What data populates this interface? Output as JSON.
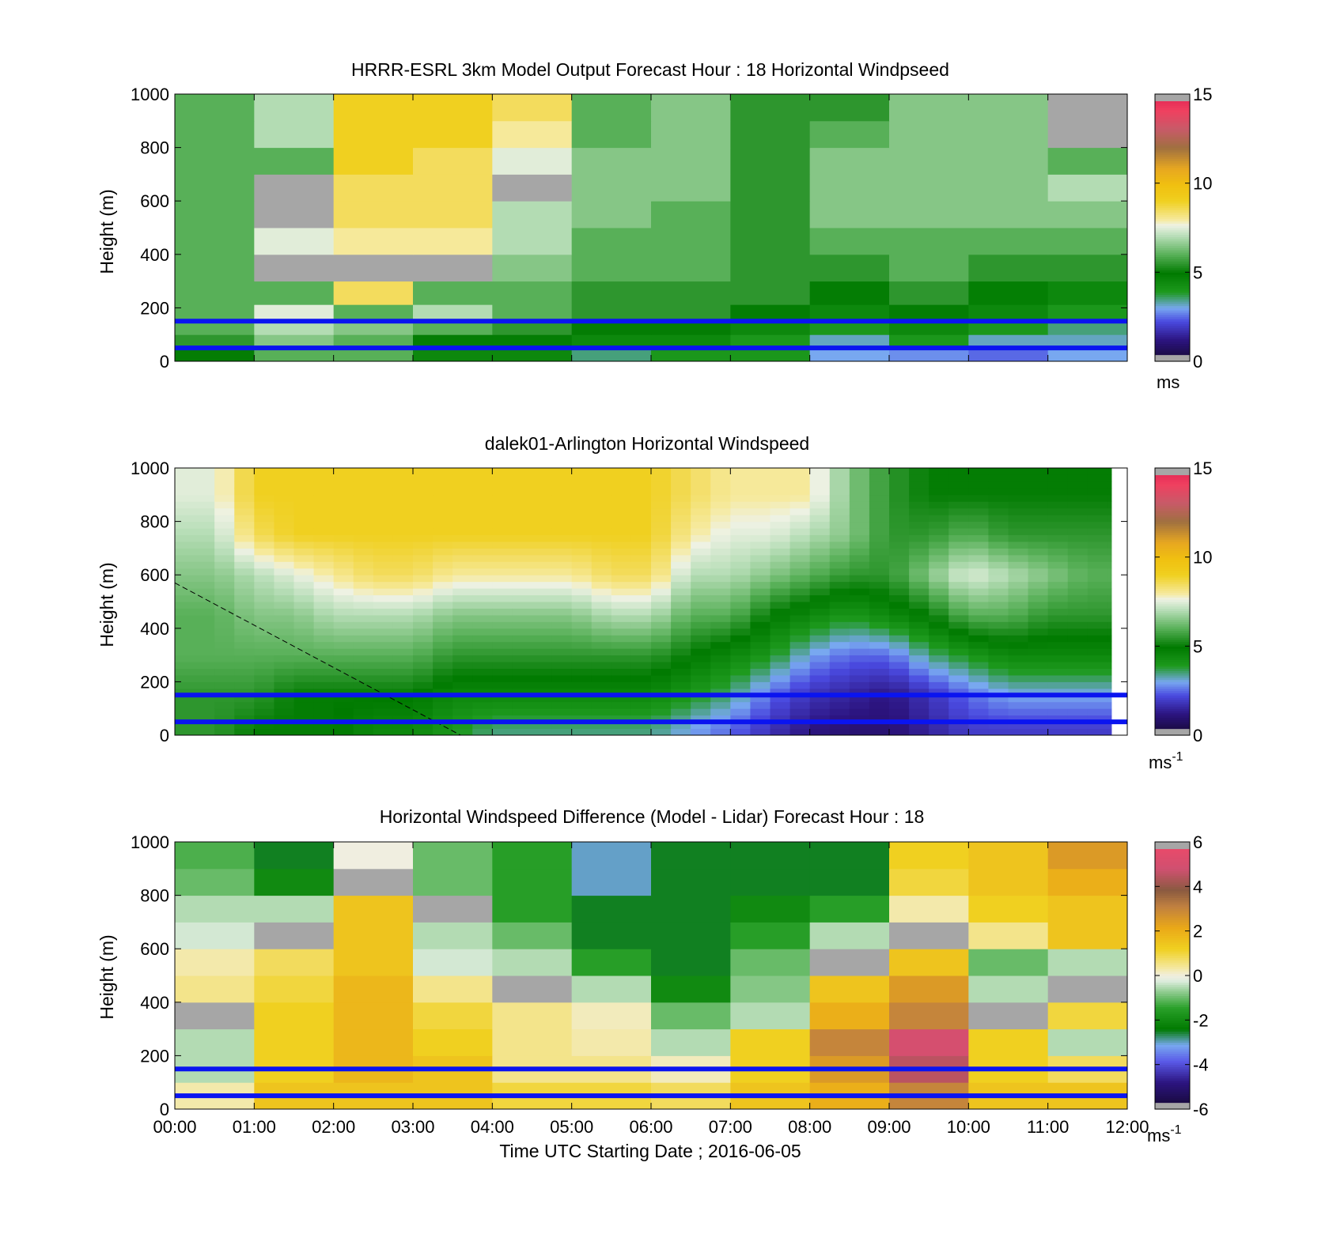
{
  "figure": {
    "xlabel": "Time UTC  Starting Date ; 2016-06-05"
  },
  "chart_data": [
    {
      "type": "heatmap",
      "title": "HRRR-ESRL 3km Model Output   Forecast Hour : 18 Horizontal Windpseed",
      "ylabel": "Height (m)",
      "xlim": [
        0,
        12
      ],
      "ylim": [
        0,
        1000
      ],
      "yticks": [
        "0",
        "200",
        "400",
        "600",
        "800",
        "1000"
      ],
      "x_tick_labels": [],
      "cbar_ticks": [
        "0",
        "5",
        "10",
        "15"
      ],
      "cbar_lim": [
        0,
        15
      ],
      "unit_label": "ms",
      "unit_sup": "",
      "colormap": "windspeed",
      "reference_lines_m": [
        150,
        50
      ],
      "x": [
        0.5,
        1.5,
        2.5,
        3.5,
        4.5,
        5.5,
        6.5,
        7.5,
        8.5,
        9.5,
        10.5,
        11.5
      ],
      "y": [
        25,
        75,
        125,
        175,
        250,
        350,
        450,
        550,
        650,
        750,
        850,
        950
      ],
      "z": [
        [
          5.0,
          6.0,
          6.0,
          4.5,
          4.5,
          3.5,
          4.0,
          4.0,
          3.0,
          2.8,
          2.5,
          3.0
        ],
        [
          5.5,
          6.5,
          6.0,
          5.0,
          5.0,
          4.5,
          4.5,
          4.0,
          3.2,
          4.0,
          3.2,
          3.2
        ],
        [
          6.0,
          7.0,
          6.5,
          6.0,
          5.5,
          5.0,
          5.0,
          4.5,
          4.0,
          4.5,
          4.0,
          3.5
        ],
        [
          6.0,
          7.5,
          6.0,
          7.0,
          6.0,
          5.5,
          5.5,
          5.0,
          4.5,
          5.0,
          4.5,
          4.0
        ],
        [
          6.0,
          6.0,
          8.5,
          6.0,
          6.0,
          5.5,
          5.5,
          5.5,
          5.0,
          5.5,
          4.8,
          4.5
        ],
        [
          6.0,
          7.5,
          7.5,
          7.5,
          6.5,
          6.0,
          6.0,
          5.5,
          5.5,
          6.0,
          5.5,
          5.5
        ],
        [
          6.0,
          7.5,
          8.0,
          8.0,
          7.0,
          6.0,
          6.0,
          5.5,
          6.0,
          6.0,
          6.0,
          6.0
        ],
        [
          6.0,
          7.5,
          8.5,
          8.5,
          7.0,
          6.5,
          6.0,
          5.5,
          6.5,
          6.5,
          6.5,
          6.5
        ],
        [
          6.0,
          6.0,
          8.5,
          8.5,
          6.0,
          6.5,
          6.5,
          5.5,
          6.5,
          6.5,
          6.5,
          7.0
        ],
        [
          6.0,
          6.0,
          9.0,
          8.5,
          7.5,
          6.5,
          6.5,
          5.5,
          6.5,
          6.5,
          6.5,
          6.0
        ],
        [
          6.0,
          7.0,
          9.0,
          9.0,
          8.0,
          6.0,
          6.5,
          5.5,
          6.0,
          6.5,
          6.5,
          6.0
        ],
        [
          6.0,
          7.0,
          9.0,
          9.0,
          8.5,
          6.0,
          6.5,
          5.5,
          5.5,
          6.5,
          6.5,
          6.0
        ]
      ],
      "missing_cells": [
        [
          1,
          7
        ],
        [
          1,
          8
        ],
        [
          1,
          5
        ],
        [
          2,
          5
        ],
        [
          3,
          5
        ],
        [
          4,
          8
        ],
        [
          11,
          10
        ],
        [
          11,
          11
        ]
      ]
    },
    {
      "type": "heatmap",
      "title": "dalek01-Arlington  Horizontal Windspeed",
      "ylabel": "Height (m)",
      "xlim": [
        0,
        12
      ],
      "ylim": [
        0,
        1000
      ],
      "yticks": [
        "0",
        "200",
        "400",
        "600",
        "800",
        "1000"
      ],
      "x_tick_labels": [],
      "cbar_ticks": [
        "0",
        "5",
        "10",
        "15"
      ],
      "cbar_lim": [
        0,
        15
      ],
      "unit_label": "ms",
      "unit_sup": "-1",
      "colormap": "windspeed",
      "reference_lines_m": [
        150,
        50
      ],
      "data_end_hour": 11.8,
      "guide_line": [
        [
          0,
          570
        ],
        [
          3.6,
          0
        ]
      ],
      "profile_hours": [
        0.5,
        1.0,
        1.5,
        2.0,
        2.5,
        3.0,
        3.5,
        4.0,
        4.5,
        5.0,
        5.5,
        6.0,
        6.5,
        7.0,
        7.5,
        8.0,
        8.5,
        9.0,
        9.5,
        10.0,
        10.5,
        11.0,
        11.5
      ],
      "profile_heights_m": [
        25,
        150,
        300,
        450,
        600,
        750,
        900
      ],
      "profile_speeds": [
        [
          5.5,
          5.5,
          6.0,
          6.0,
          6.5,
          7.0,
          7.5
        ],
        [
          5.0,
          5.5,
          6.0,
          6.5,
          7.0,
          8.5,
          9.0
        ],
        [
          5.0,
          5.0,
          6.0,
          6.5,
          7.5,
          9.0,
          9.0
        ],
        [
          5.0,
          5.0,
          6.0,
          7.0,
          8.0,
          9.0,
          9.0
        ],
        [
          4.5,
          5.0,
          6.0,
          7.0,
          8.5,
          9.0,
          9.0
        ],
        [
          4.5,
          5.0,
          6.0,
          7.0,
          8.5,
          9.0,
          9.0
        ],
        [
          4.0,
          4.5,
          5.5,
          6.5,
          8.0,
          9.0,
          9.0
        ],
        [
          3.5,
          4.5,
          5.5,
          6.5,
          8.0,
          9.0,
          9.0
        ],
        [
          3.5,
          4.5,
          5.5,
          6.5,
          8.0,
          9.0,
          9.0
        ],
        [
          3.5,
          4.5,
          5.5,
          6.5,
          8.0,
          9.0,
          9.0
        ],
        [
          3.5,
          4.5,
          5.5,
          7.0,
          8.5,
          9.0,
          9.0
        ],
        [
          3.5,
          4.5,
          5.5,
          7.0,
          8.5,
          9.0,
          9.0
        ],
        [
          3.0,
          4.0,
          5.0,
          6.0,
          7.0,
          8.0,
          8.5
        ],
        [
          2.5,
          3.5,
          4.5,
          6.0,
          7.0,
          7.5,
          8.0
        ],
        [
          1.8,
          2.5,
          4.0,
          5.0,
          6.5,
          7.5,
          8.0
        ],
        [
          1.2,
          1.8,
          3.0,
          4.5,
          6.0,
          7.0,
          8.0
        ],
        [
          1.0,
          1.5,
          2.5,
          4.0,
          5.5,
          6.5,
          6.5
        ],
        [
          1.0,
          1.2,
          2.5,
          4.5,
          5.5,
          5.5,
          5.5
        ],
        [
          1.5,
          1.8,
          3.5,
          5.0,
          6.5,
          5.5,
          5.0
        ],
        [
          2.0,
          2.5,
          4.0,
          6.0,
          7.5,
          6.0,
          5.0
        ],
        [
          2.0,
          3.0,
          4.5,
          6.0,
          7.0,
          5.5,
          5.0
        ],
        [
          2.0,
          3.0,
          4.5,
          5.5,
          6.5,
          5.5,
          5.0
        ],
        [
          2.0,
          3.0,
          4.5,
          5.5,
          6.0,
          5.5,
          5.0
        ]
      ]
    },
    {
      "type": "heatmap",
      "title": "Horizontal Windspeed Difference (Model - Lidar) Forecast Hour : 18",
      "ylabel": "Height (m)",
      "xlim": [
        0,
        12
      ],
      "ylim": [
        0,
        1000
      ],
      "yticks": [
        "0",
        "200",
        "400",
        "600",
        "800",
        "1000"
      ],
      "x_tick_labels": [
        "00:00",
        "01:00",
        "02:00",
        "03:00",
        "04:00",
        "05:00",
        "06:00",
        "07:00",
        "08:00",
        "09:00",
        "10:00",
        "11:00",
        "12:00"
      ],
      "cbar_ticks": [
        "-6",
        "-4",
        "-2",
        "0",
        "2",
        "4",
        "6"
      ],
      "cbar_lim": [
        -6,
        6
      ],
      "unit_label": "ms",
      "unit_sup": "-1",
      "colormap": "difference",
      "reference_lines_m": [
        150,
        50
      ],
      "x": [
        0.5,
        1.5,
        2.5,
        3.5,
        4.5,
        5.5,
        6.5,
        7.5,
        8.5,
        9.5,
        10.5,
        11.5
      ],
      "y": [
        50,
        150,
        250,
        350,
        450,
        550,
        650,
        750,
        850,
        950
      ],
      "z": [
        [
          0.3,
          1.5,
          1.5,
          1.5,
          1.0,
          1.0,
          0.8,
          1.5,
          2.0,
          3.0,
          1.5,
          1.5
        ],
        [
          -0.5,
          1.2,
          1.8,
          1.5,
          0.5,
          0.5,
          0.2,
          1.2,
          2.5,
          4.5,
          1.2,
          0.8
        ],
        [
          -0.5,
          1.2,
          1.8,
          1.2,
          0.5,
          0.3,
          -0.5,
          1.2,
          3.0,
          5.0,
          1.2,
          -0.5
        ],
        [
          0.3,
          1.2,
          1.8,
          1.0,
          0.5,
          0.2,
          -1.0,
          -0.5,
          2.0,
          3.0,
          0.5,
          1.0
        ],
        [
          0.5,
          1.0,
          1.8,
          0.5,
          0.2,
          -0.5,
          -2.0,
          -0.8,
          1.5,
          2.5,
          -0.5,
          0.5
        ],
        [
          0.3,
          0.8,
          1.5,
          -0.3,
          -0.5,
          -1.5,
          -2.5,
          -1.0,
          1.0,
          1.5,
          -1.0,
          -0.5
        ],
        [
          -0.3,
          0.2,
          1.5,
          -0.5,
          -1.0,
          -2.5,
          -2.5,
          -1.5,
          -0.5,
          0.5,
          0.5,
          1.5
        ],
        [
          -0.5,
          -0.5,
          1.5,
          -0.8,
          -1.5,
          -2.5,
          -2.5,
          -2.0,
          -1.5,
          0.3,
          1.2,
          1.5
        ],
        [
          -1.0,
          -2.0,
          0.5,
          -1.0,
          -1.5,
          -3.0,
          -2.5,
          -2.5,
          -2.5,
          1.0,
          1.5,
          2.0
        ],
        [
          -1.2,
          -2.5,
          0.0,
          -1.0,
          -1.5,
          -3.0,
          -2.5,
          -2.5,
          -2.5,
          1.2,
          1.5,
          2.5
        ]
      ],
      "missing_cells": [
        [
          2,
          8
        ],
        [
          3,
          7
        ],
        [
          4,
          4
        ],
        [
          0,
          3
        ],
        [
          8,
          5
        ],
        [
          9,
          6
        ],
        [
          10,
          3
        ],
        [
          11,
          4
        ],
        [
          1,
          6
        ]
      ]
    }
  ]
}
